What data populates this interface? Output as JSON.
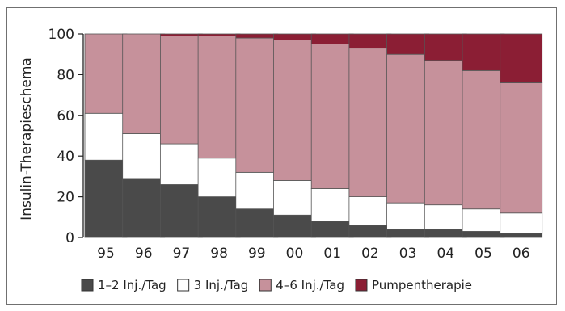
{
  "chart_data": {
    "type": "bar",
    "stacked": true,
    "ylabel": "Insulin-Therapieschema",
    "ylim": [
      0,
      100
    ],
    "yticks": [
      100,
      80,
      60,
      40,
      20,
      0
    ],
    "ytick_labels": [
      "100",
      "80",
      "60",
      "40",
      "20",
      "0"
    ],
    "categories": [
      "95",
      "96",
      "97",
      "98",
      "99",
      "00",
      "01",
      "02",
      "03",
      "04",
      "05",
      "06"
    ],
    "series": [
      {
        "name": "1–2 Inj./Tag",
        "color": "#4a4a4a",
        "values": [
          38,
          29,
          26,
          20,
          14,
          11,
          8,
          6,
          4,
          4,
          3,
          2
        ]
      },
      {
        "name": "3 Inj./Tag",
        "color": "#ffffff",
        "values": [
          23,
          22,
          20,
          19,
          18,
          17,
          16,
          14,
          13,
          12,
          11,
          10
        ]
      },
      {
        "name": "4–6 Inj./Tag",
        "color": "#c6919b",
        "values": [
          39,
          49,
          53,
          60,
          66,
          69,
          71,
          73,
          73,
          71,
          68,
          64
        ]
      },
      {
        "name": "Pumpentherapie",
        "color": "#8b1e34",
        "values": [
          0,
          0,
          1,
          1,
          2,
          3,
          5,
          7,
          10,
          13,
          18,
          24
        ]
      }
    ],
    "legend_position": "bottom",
    "grid": false
  }
}
